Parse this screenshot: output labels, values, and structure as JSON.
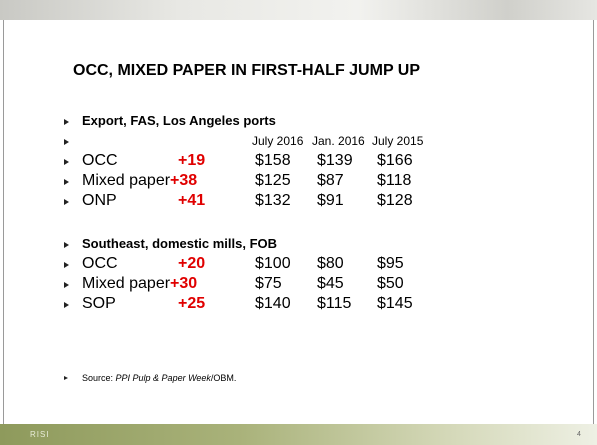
{
  "title": "OCC, MIXED PAPER IN FIRST-HALF JUMP UP",
  "sections": [
    {
      "heading": "Export, FAS, Los Angeles ports",
      "columns": [
        "July 2016",
        "Jan. 2016",
        "July 2015"
      ],
      "rows": [
        {
          "name": "OCC",
          "change": "+19",
          "values": [
            "$158",
            "$139",
            "$166"
          ]
        },
        {
          "name": "Mixed paper",
          "change": "+38",
          "values": [
            "$125",
            "$87",
            "$118"
          ]
        },
        {
          "name": "ONP",
          "change": "+41",
          "values": [
            "$132",
            "$91",
            "$128"
          ]
        }
      ]
    },
    {
      "heading": "Southeast, domestic mills, FOB",
      "rows": [
        {
          "name": "OCC",
          "change": "+20",
          "values": [
            "$100",
            "$80",
            "$95"
          ]
        },
        {
          "name": "Mixed paper",
          "change": "+30",
          "values": [
            "$75",
            "$45",
            "$50"
          ]
        },
        {
          "name": "SOP",
          "change": "+25",
          "values": [
            "$140",
            "$115",
            "$145"
          ]
        }
      ]
    }
  ],
  "source": {
    "prefix": "Source: ",
    "italic": "PPI Pulp & Paper Week",
    "suffix": "/OBM."
  },
  "footer": {
    "logo": "RISI",
    "page": "4"
  }
}
